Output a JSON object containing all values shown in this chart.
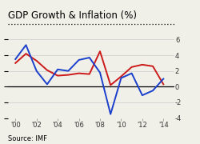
{
  "title": "GDP Growth & Inflation (%)",
  "source": "Source: IMF",
  "years": [
    2000,
    2001,
    2002,
    2003,
    2004,
    2005,
    2006,
    2007,
    2008,
    2009,
    2010,
    2011,
    2012,
    2013,
    2014
  ],
  "gdp": [
    3.5,
    5.3,
    2.0,
    0.3,
    2.2,
    2.0,
    3.4,
    3.7,
    1.8,
    -3.5,
    1.1,
    1.7,
    -1.1,
    -0.5,
    1.0
  ],
  "inflation": [
    3.0,
    4.2,
    3.3,
    2.1,
    1.4,
    1.5,
    1.7,
    1.6,
    4.5,
    0.2,
    1.3,
    2.5,
    2.8,
    2.6,
    0.3
  ],
  "gdp_color": "#1a3fcc",
  "inflation_color": "#cc1a1a",
  "background_color": "#f0f0e8",
  "ylim": [
    -4,
    7
  ],
  "yticks": [
    -4,
    -2,
    0,
    2,
    4,
    6
  ],
  "xtick_labels": [
    "'00",
    "'02",
    "'04",
    "'06",
    "'08",
    "'10",
    "'12",
    "'14"
  ],
  "xtick_years": [
    2000,
    2002,
    2004,
    2006,
    2008,
    2010,
    2012,
    2014
  ],
  "title_fontsize": 8.5,
  "tick_fontsize": 6,
  "source_fontsize": 6,
  "linewidth": 1.4
}
